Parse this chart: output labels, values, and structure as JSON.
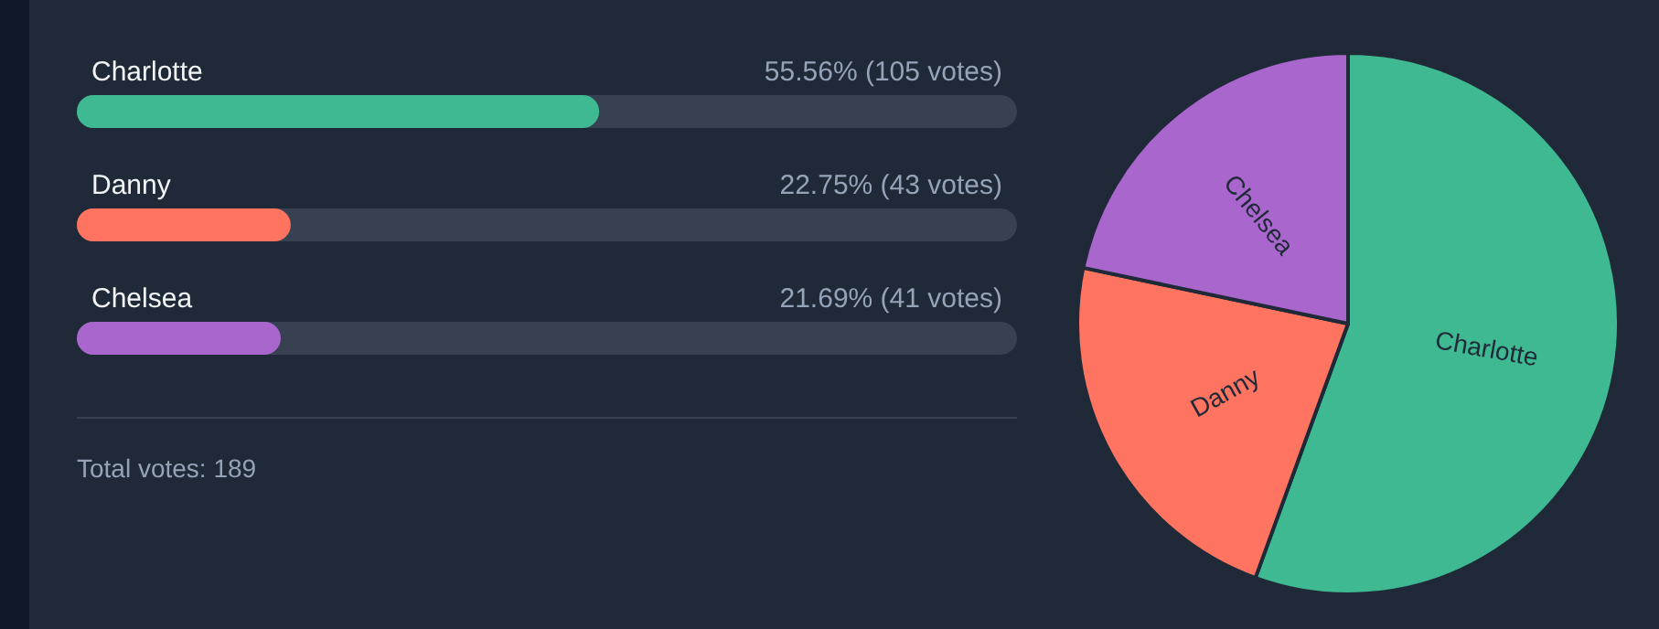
{
  "chart_data": [
    {
      "type": "bar",
      "orientation": "horizontal",
      "categories": [
        "Charlotte",
        "Danny",
        "Chelsea"
      ],
      "values": [
        55.56,
        22.75,
        21.69
      ],
      "value_labels": [
        "55.56% (105 votes)",
        "22.75% (43 votes)",
        "21.69% (41 votes)"
      ],
      "colors": [
        "#3eb991",
        "#ff7461",
        "#a966cd"
      ],
      "xlim": [
        0,
        100
      ],
      "tick_labels": false,
      "legend": false,
      "annotations": [
        "Total votes: 189"
      ]
    },
    {
      "type": "pie",
      "categories": [
        "Charlotte",
        "Danny",
        "Chelsea"
      ],
      "values": [
        55.56,
        22.75,
        21.69
      ],
      "colors": [
        "#3eb991",
        "#ff7461",
        "#a966cd"
      ],
      "legend": false
    }
  ]
}
